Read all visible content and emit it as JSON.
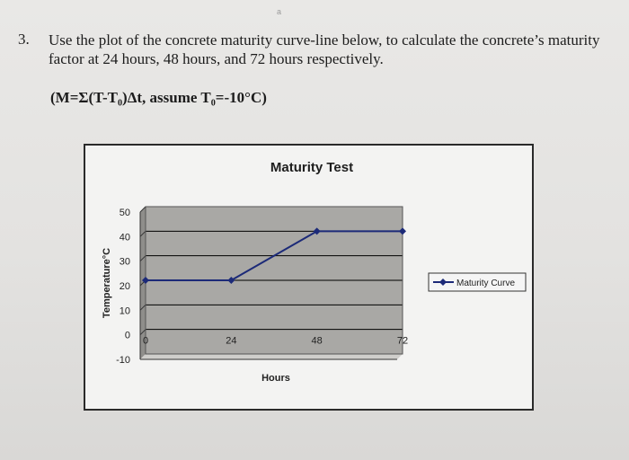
{
  "question": {
    "number": "3.",
    "text": "Use the plot of the concrete maturity curve-line below, to calculate the concrete’s maturity factor at 24 hours, 48 hours, and 72 hours respectively.",
    "formula": "(M=Σ(T-T₀)Δt, assume T₀=-10°C)",
    "stray_mark": "a"
  },
  "colors": {
    "plot_area": "#a9a8a5",
    "line": "#1c2a78",
    "grid": "#000000"
  },
  "chart_data": {
    "type": "line",
    "title": "Maturity Test",
    "xlabel": "Hours",
    "ylabel": "Temperature°C",
    "x_ticks": [
      "0",
      "24",
      "48",
      "72"
    ],
    "y_ticks": [
      "-10",
      "0",
      "10",
      "20",
      "30",
      "40",
      "50"
    ],
    "xlim": [
      0,
      72
    ],
    "ylim": [
      -10,
      50
    ],
    "grid": true,
    "legend_position": "right",
    "series": [
      {
        "name": "Maturity Curve",
        "x": [
          0,
          24,
          48,
          72
        ],
        "y": [
          20,
          20,
          40,
          40
        ]
      }
    ]
  }
}
